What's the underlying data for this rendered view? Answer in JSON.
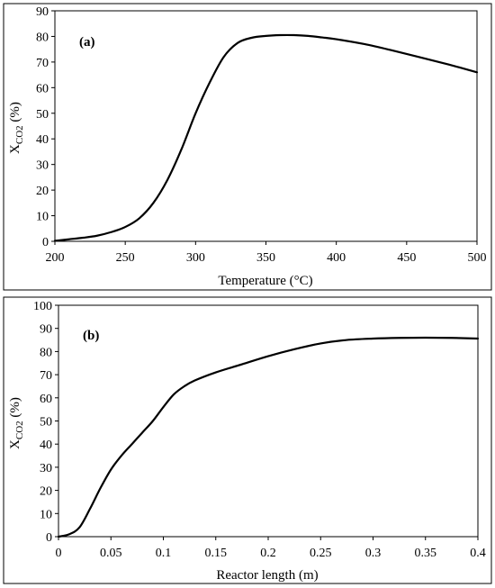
{
  "chart_data": [
    {
      "type": "line",
      "panel_label": "(a)",
      "xlabel": "Temperature (°C)",
      "ylabel_main": "X",
      "ylabel_sub": "CO2",
      "ylabel_unit": " (%)",
      "xlim": [
        200,
        500
      ],
      "ylim": [
        0,
        90
      ],
      "xticks": [
        200,
        250,
        300,
        350,
        400,
        450,
        500
      ],
      "yticks": [
        0,
        10,
        20,
        30,
        40,
        50,
        60,
        70,
        80,
        90
      ],
      "grid": false,
      "line_color": "#000000",
      "series": [
        {
          "x": [
            200,
            210,
            220,
            230,
            240,
            250,
            260,
            270,
            280,
            290,
            300,
            310,
            320,
            330,
            340,
            350,
            360,
            370,
            380,
            390,
            400,
            420,
            440,
            460,
            480,
            500
          ],
          "y": [
            0.2,
            0.8,
            1.4,
            2.2,
            3.6,
            5.6,
            9.0,
            15.0,
            24.0,
            36.0,
            50.0,
            62.0,
            72.0,
            77.5,
            79.5,
            80.2,
            80.5,
            80.5,
            80.2,
            79.6,
            78.9,
            77.0,
            74.5,
            71.8,
            69.0,
            66.0
          ]
        }
      ]
    },
    {
      "type": "line",
      "panel_label": "(b)",
      "xlabel": "Reactor length (m)",
      "ylabel_main": "X",
      "ylabel_sub": "CO2",
      "ylabel_unit": " (%)",
      "xlim": [
        0,
        0.4
      ],
      "ylim": [
        0,
        100
      ],
      "xticks": [
        0,
        0.05,
        0.1,
        0.15,
        0.2,
        0.25,
        0.3,
        0.35,
        0.4
      ],
      "yticks": [
        0,
        10,
        20,
        30,
        40,
        50,
        60,
        70,
        80,
        90,
        100
      ],
      "grid": false,
      "line_color": "#000000",
      "series": [
        {
          "x": [
            0,
            0.01,
            0.02,
            0.03,
            0.04,
            0.05,
            0.06,
            0.07,
            0.08,
            0.09,
            0.1,
            0.11,
            0.12,
            0.13,
            0.15,
            0.175,
            0.2,
            0.225,
            0.25,
            0.275,
            0.3,
            0.325,
            0.35,
            0.375,
            0.4
          ],
          "y": [
            0,
            1.0,
            4.0,
            12.0,
            21.0,
            29.0,
            35.0,
            40.0,
            45.0,
            50.0,
            56.0,
            61.5,
            65.0,
            67.5,
            71.0,
            74.5,
            78.0,
            81.0,
            83.5,
            85.0,
            85.6,
            85.9,
            86.0,
            85.9,
            85.6
          ]
        }
      ]
    }
  ]
}
